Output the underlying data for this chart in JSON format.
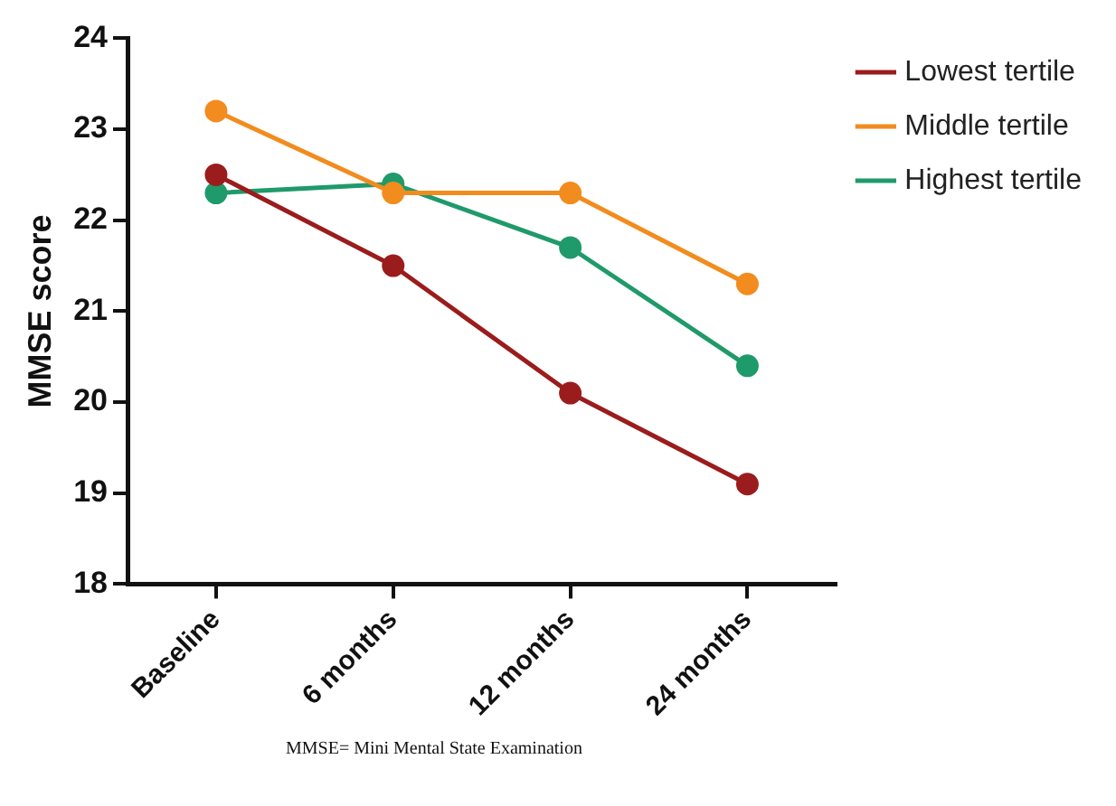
{
  "chart_data": {
    "type": "line",
    "ylabel": "MMSE score",
    "categories": [
      "Baseline",
      "6 months",
      "12 months",
      "24 months"
    ],
    "series": [
      {
        "name": "Lowest tertile",
        "color": "#9b1c1c",
        "values": [
          22.5,
          21.5,
          20.1,
          19.1
        ]
      },
      {
        "name": "Middle tertile",
        "color": "#f28c1e",
        "values": [
          23.2,
          22.3,
          22.3,
          21.3
        ]
      },
      {
        "name": "Highest tertile",
        "color": "#1f9a6a",
        "values": [
          22.3,
          22.4,
          21.7,
          20.4
        ]
      }
    ],
    "ylim": [
      18,
      24
    ],
    "yticks": [
      18,
      19,
      20,
      21,
      22,
      23,
      24
    ],
    "grid": false,
    "legend": "top right",
    "marker": "circle",
    "line_style": "solid",
    "annotations": [
      "MMSE= Mini Mental State Examination"
    ]
  }
}
